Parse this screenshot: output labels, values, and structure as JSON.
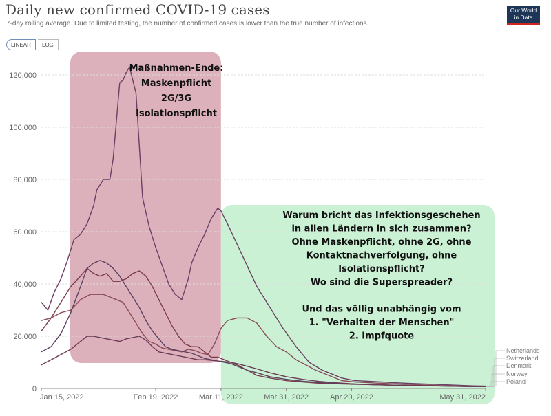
{
  "header": {
    "title": "Daily new confirmed COVID-19 cases",
    "subtitle": "7-day rolling average. Due to limited testing, the number of confirmed cases is lower than the true number of infections.",
    "scale_toggle": {
      "linear": "LINEAR",
      "log": "LOG",
      "selected": "LINEAR"
    },
    "logo_text_1": "Our World",
    "logo_text_2": "in Data"
  },
  "colors": {
    "red_box": "#d9a9b5",
    "green_box": "#c4f0cf",
    "logo_bg": "#1d3557",
    "logo_accent": "#ce261e"
  },
  "annotations": {
    "red": [
      "Maßnahmen-Ende:",
      "Maskenpflicht",
      "2G/3G",
      "Isolationspflicht"
    ],
    "green": [
      "Warum bricht das Infektionsgeschehen",
      "in allen Ländern in sich zusammen?",
      "Ohne Maskenpflicht, ohne 2G, ohne",
      "Kontaktnachverfolgung, ohne",
      "Isolationspflicht?",
      "Wo sind die Superspreader?",
      "",
      "Und das völlig unabhängig vom",
      "1. \"Verhalten der Menschen\"",
      "2. Impfquote"
    ]
  },
  "chart_data": {
    "type": "line",
    "title": "Daily new confirmed COVID-19 cases",
    "subtitle": "7-day rolling average. Due to limited testing, the number of confirmed cases is lower than the true number of infections.",
    "xlabel": "",
    "ylabel": "",
    "ylim": [
      0,
      120000
    ],
    "xlim_days": [
      0,
      136
    ],
    "grid": true,
    "legend_position": "right",
    "y_ticks": [
      "0",
      "20,000",
      "40,000",
      "60,000",
      "80,000",
      "100,000",
      "120,000"
    ],
    "y_tick_values": [
      0,
      20000,
      40000,
      60000,
      80000,
      100000,
      120000
    ],
    "x_ticks": [
      "Jan 15, 2022",
      "Feb 19, 2022",
      "Mar 11, 2022",
      "Mar 31, 2022",
      "Apr 20, 2022",
      "May 31, 2022"
    ],
    "x_tick_days": [
      0,
      35,
      55,
      75,
      95,
      136
    ],
    "series": [
      {
        "name": "Netherlands",
        "color": "#6a3f63",
        "x": [
          0,
          2,
          4,
          6,
          8,
          10,
          12,
          14,
          16,
          17,
          19,
          21,
          22,
          24,
          25,
          26,
          27,
          29,
          31,
          33,
          35,
          37,
          39,
          41,
          43,
          45,
          46,
          48,
          50,
          52,
          54,
          55,
          57,
          60,
          63,
          66,
          70,
          74,
          78,
          82,
          86,
          88,
          90,
          92,
          94,
          96,
          100,
          104,
          108,
          112,
          116,
          120,
          124,
          128,
          132,
          136
        ],
        "y": [
          33000,
          30000,
          37000,
          42000,
          49000,
          57000,
          59000,
          63000,
          70000,
          76000,
          80000,
          80000,
          88000,
          117000,
          118000,
          121000,
          123000,
          113000,
          73000,
          62000,
          54000,
          47000,
          40000,
          36000,
          34000,
          42000,
          48000,
          54000,
          59000,
          65000,
          69000,
          68000,
          63000,
          55000,
          47000,
          39000,
          31000,
          23000,
          16000,
          10000,
          7000,
          6000,
          5000,
          4000,
          3500,
          3000,
          2800,
          2500,
          2200,
          2000,
          1800,
          1600,
          1400,
          1200,
          1000,
          900
        ]
      },
      {
        "name": "Switzerland",
        "color": "#8a4a5a",
        "x": [
          0,
          3,
          6,
          9,
          12,
          15,
          17,
          19,
          21,
          23,
          25,
          27,
          29,
          31,
          33,
          35,
          37,
          39,
          41,
          43,
          45,
          47,
          49,
          51,
          53,
          55,
          57,
          60,
          63,
          66,
          69,
          72,
          75,
          78,
          81,
          84,
          88,
          92,
          96,
          100,
          104,
          108,
          112,
          116,
          120,
          124,
          128,
          132,
          136
        ],
        "y": [
          26000,
          27000,
          29000,
          30000,
          34000,
          36000,
          36000,
          36000,
          35000,
          34000,
          33000,
          29000,
          25000,
          21000,
          18000,
          17000,
          15500,
          15000,
          14500,
          14000,
          15000,
          14500,
          13500,
          13000,
          17000,
          23000,
          26000,
          27000,
          27000,
          25000,
          20000,
          16000,
          14000,
          11000,
          9000,
          7000,
          5000,
          3000,
          2500,
          2200,
          2000,
          1800,
          1600,
          1400,
          1200,
          1000,
          900,
          800,
          700
        ]
      },
      {
        "name": "Denmark",
        "color": "#7a3a4a",
        "x": [
          0,
          3,
          6,
          9,
          12,
          14,
          16,
          18,
          20,
          22,
          24,
          26,
          28,
          30,
          32,
          34,
          36,
          38,
          40,
          42,
          44,
          46,
          48,
          50,
          52,
          54,
          56,
          58,
          60,
          63,
          66,
          70,
          75,
          80,
          85,
          90,
          95,
          100,
          105,
          110,
          115,
          120,
          125,
          130,
          136
        ],
        "y": [
          22000,
          27000,
          33000,
          39000,
          43000,
          46000,
          44000,
          43000,
          44000,
          41000,
          41000,
          42000,
          44000,
          45000,
          43000,
          39000,
          34000,
          29000,
          24000,
          20000,
          17000,
          16000,
          16000,
          14000,
          12000,
          12000,
          11000,
          10000,
          9000,
          7000,
          5000,
          4000,
          3000,
          2500,
          2000,
          1800,
          1600,
          1500,
          1300,
          1200,
          1100,
          1000,
          900,
          800,
          700
        ]
      },
      {
        "name": "Norway",
        "color": "#5b4060",
        "x": [
          0,
          3,
          6,
          9,
          12,
          14,
          16,
          18,
          20,
          22,
          24,
          26,
          28,
          30,
          32,
          34,
          36,
          38,
          40,
          42,
          44,
          46,
          48,
          50,
          52,
          54,
          56,
          58,
          60,
          63,
          66,
          70,
          75,
          80,
          85,
          90,
          95,
          100,
          110,
          120,
          130,
          136
        ],
        "y": [
          14000,
          16000,
          21000,
          29000,
          39000,
          46000,
          48000,
          49000,
          48000,
          46000,
          43000,
          39000,
          35000,
          31000,
          26000,
          22000,
          19000,
          16000,
          15000,
          14500,
          14000,
          13500,
          12500,
          11500,
          11000,
          10500,
          10000,
          9500,
          8500,
          7000,
          6000,
          4500,
          3500,
          2800,
          2300,
          2000,
          1700,
          1500,
          1200,
          1000,
          800,
          700
        ]
      },
      {
        "name": "Poland",
        "color": "#6b3a55",
        "x": [
          0,
          3,
          6,
          9,
          12,
          14,
          16,
          18,
          20,
          22,
          24,
          26,
          28,
          30,
          32,
          34,
          36,
          38,
          40,
          42,
          44,
          46,
          48,
          50,
          52,
          54,
          56,
          58,
          60,
          63,
          66,
          70,
          75,
          80,
          85,
          90,
          95,
          100,
          110,
          120,
          130,
          136
        ],
        "y": [
          9000,
          11000,
          13000,
          15000,
          18000,
          20000,
          20000,
          19500,
          19000,
          18500,
          18000,
          19000,
          19500,
          20000,
          18500,
          16000,
          14000,
          13500,
          13000,
          12500,
          12000,
          11500,
          11000,
          11000,
          10800,
          10500,
          10300,
          10000,
          9500,
          8500,
          7500,
          6000,
          4500,
          3500,
          2700,
          2200,
          1800,
          1500,
          1200,
          1000,
          800,
          700
        ]
      }
    ],
    "highlight_regions": [
      {
        "label": "Maßnahmen-Ende: Maskenpflicht 2G/3G Isolationspflicht",
        "color": "red",
        "start_day": 9,
        "end_day": 55
      },
      {
        "label": "Warum bricht das Infektionsgeschehen ...",
        "color": "green",
        "start_day": 55,
        "end_day": 136
      }
    ]
  }
}
